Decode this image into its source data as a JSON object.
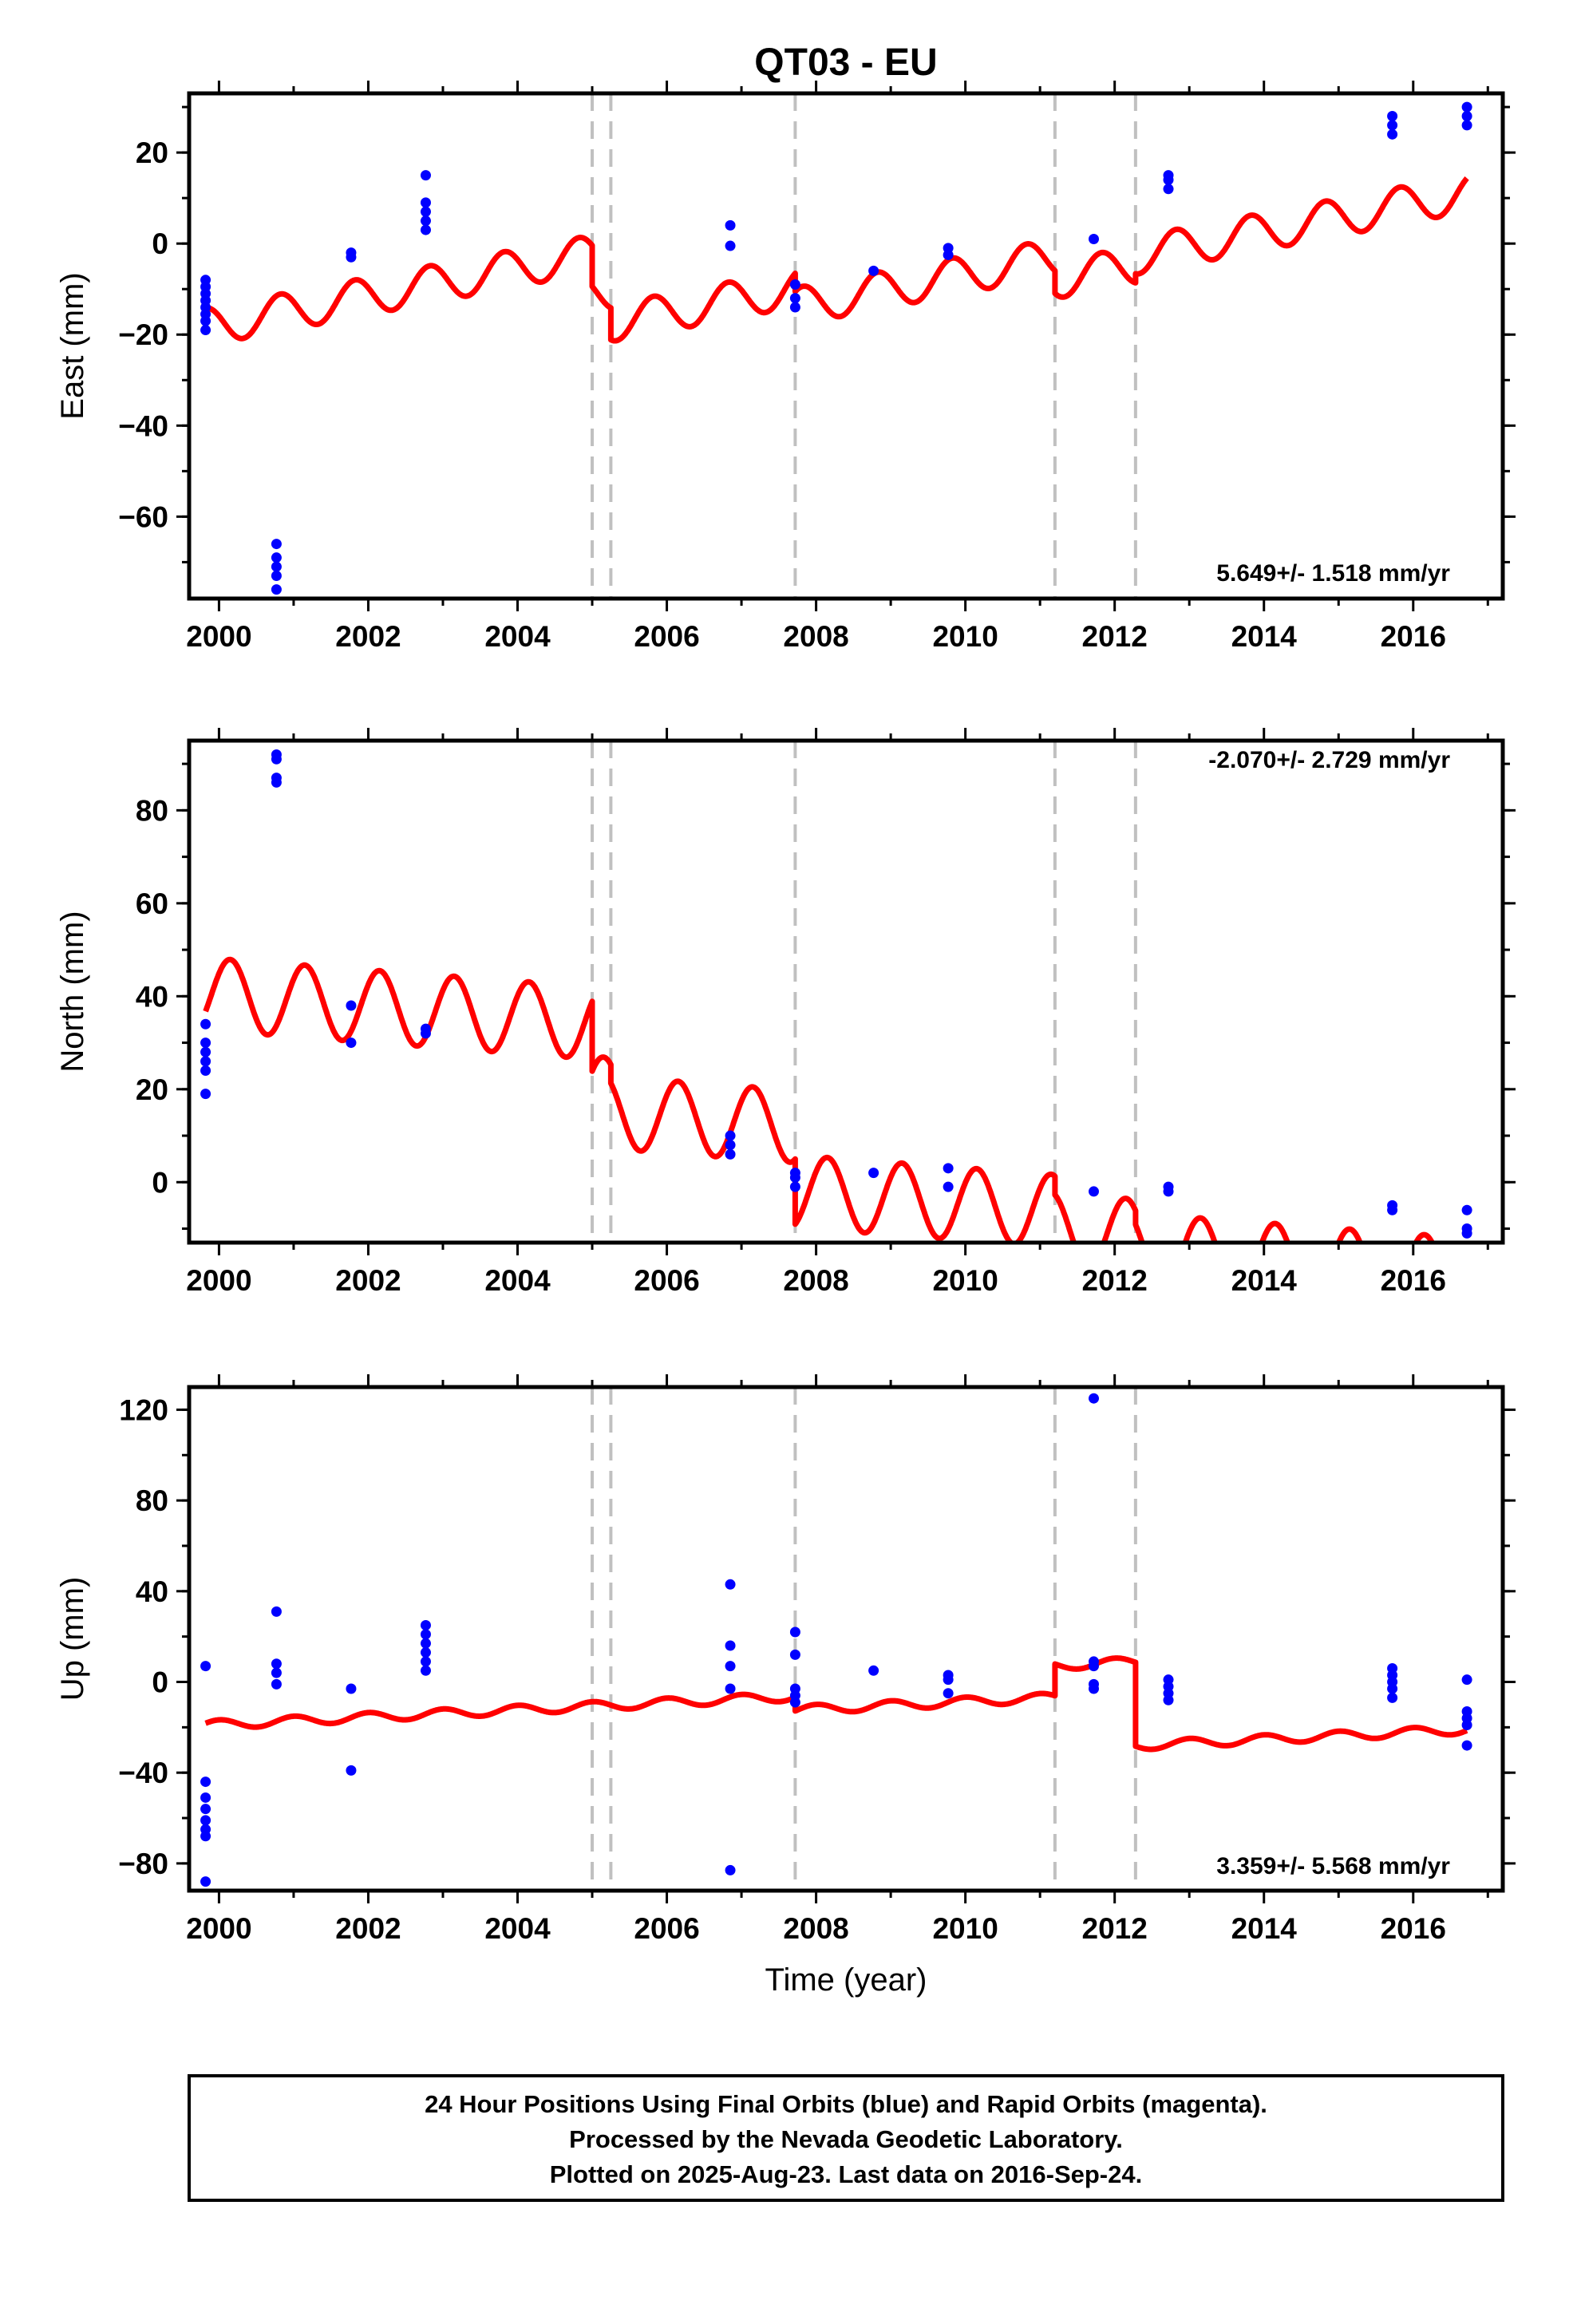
{
  "title": "QT03 - EU",
  "colors": {
    "model": "#ff0000",
    "points": "#0000ff",
    "breaks": "#c0c0c0"
  },
  "footer": {
    "line1": "24 Hour Positions Using Final Orbits (blue) and Rapid Orbits (magenta).",
    "line2": "Processed by the Nevada Geodetic Laboratory.",
    "line3": "Plotted on 2025-Aug-23. Last data on 2016-Sep-24."
  },
  "chart_data": [
    {
      "type": "scatter",
      "name": "east",
      "ylabel": "East (mm)",
      "xlabel": "",
      "rate_label": "5.649+/- 1.518 mm/yr",
      "xlim": [
        1999.6,
        2017.2
      ],
      "ylim": [
        -78,
        33
      ],
      "xticks": [
        2000,
        2002,
        2004,
        2006,
        2008,
        2010,
        2012,
        2014,
        2016
      ],
      "yticks": [
        -60,
        -40,
        -20,
        0,
        20
      ],
      "breaks": [
        2005.0,
        2005.25,
        2007.72,
        2011.2,
        2012.28
      ],
      "points": [
        [
          1999.82,
          -8
        ],
        [
          1999.82,
          -9.5
        ],
        [
          1999.82,
          -11
        ],
        [
          1999.82,
          -12.5
        ],
        [
          1999.82,
          -14
        ],
        [
          1999.82,
          -15.5
        ],
        [
          1999.82,
          -17
        ],
        [
          1999.82,
          -19
        ],
        [
          2000.77,
          -66
        ],
        [
          2000.77,
          -69
        ],
        [
          2000.77,
          -71
        ],
        [
          2000.77,
          -73
        ],
        [
          2000.77,
          -76
        ],
        [
          2001.77,
          -2
        ],
        [
          2001.77,
          -3
        ],
        [
          2002.77,
          3
        ],
        [
          2002.77,
          5
        ],
        [
          2002.77,
          7
        ],
        [
          2002.77,
          9
        ],
        [
          2002.77,
          15
        ],
        [
          2006.85,
          -0.5
        ],
        [
          2006.85,
          4
        ],
        [
          2007.72,
          -9
        ],
        [
          2007.72,
          -12
        ],
        [
          2007.72,
          -14
        ],
        [
          2008.77,
          -6
        ],
        [
          2009.77,
          -1
        ],
        [
          2009.77,
          -2.5
        ],
        [
          2011.72,
          1
        ],
        [
          2012.72,
          12
        ],
        [
          2012.72,
          14
        ],
        [
          2012.72,
          15
        ],
        [
          2015.72,
          24
        ],
        [
          2015.72,
          26
        ],
        [
          2015.72,
          28
        ],
        [
          2016.72,
          26
        ],
        [
          2016.72,
          28
        ],
        [
          2016.72,
          30
        ]
      ],
      "model": {
        "start": 1999.82,
        "end": 2016.72,
        "base": -18.3,
        "rate": 3.1,
        "amp": 4.1,
        "phase": 1.55,
        "segments": [
          {
            "from": 1999.82,
            "to": 2005.0,
            "offset": 0
          },
          {
            "from": 2005.0,
            "to": 2005.25,
            "offset": -9
          },
          {
            "from": 2005.25,
            "to": 2007.72,
            "offset": -16
          },
          {
            "from": 2007.72,
            "to": 2011.2,
            "offset": -20
          },
          {
            "from": 2011.2,
            "to": 2012.28,
            "offset": -25
          },
          {
            "from": 2012.28,
            "to": 2016.72,
            "offset": -23
          }
        ]
      }
    },
    {
      "type": "scatter",
      "name": "north",
      "ylabel": "North (mm)",
      "xlabel": "",
      "rate_label": "-2.070+/- 2.729 mm/yr",
      "xlim": [
        1999.6,
        2017.2
      ],
      "ylim": [
        -13,
        95
      ],
      "xticks": [
        2000,
        2002,
        2004,
        2006,
        2008,
        2010,
        2012,
        2014,
        2016
      ],
      "yticks": [
        0,
        20,
        40,
        60,
        80
      ],
      "breaks": [
        2005.0,
        2005.25,
        2007.72,
        2011.2,
        2012.28
      ],
      "points": [
        [
          1999.82,
          19
        ],
        [
          1999.82,
          24
        ],
        [
          1999.82,
          26
        ],
        [
          1999.82,
          28
        ],
        [
          1999.82,
          30
        ],
        [
          1999.82,
          34
        ],
        [
          2000.77,
          86
        ],
        [
          2000.77,
          87
        ],
        [
          2000.77,
          91
        ],
        [
          2000.77,
          92
        ],
        [
          2001.77,
          30
        ],
        [
          2001.77,
          38
        ],
        [
          2002.77,
          32
        ],
        [
          2002.77,
          33
        ],
        [
          2006.85,
          6
        ],
        [
          2006.85,
          8
        ],
        [
          2006.85,
          10
        ],
        [
          2007.72,
          -1
        ],
        [
          2007.72,
          1
        ],
        [
          2007.72,
          2
        ],
        [
          2008.77,
          2
        ],
        [
          2009.77,
          3
        ],
        [
          2009.77,
          -1
        ],
        [
          2011.72,
          -2
        ],
        [
          2012.72,
          -1
        ],
        [
          2012.72,
          -2
        ],
        [
          2015.72,
          -5
        ],
        [
          2015.72,
          -6
        ],
        [
          2016.72,
          -6
        ],
        [
          2016.72,
          -10
        ],
        [
          2016.72,
          -11
        ]
      ],
      "model": {
        "start": 1999.82,
        "end": 2016.72,
        "base": 40.5,
        "rate": -1.2,
        "amp": 7.8,
        "phase": -0.5,
        "segments": [
          {
            "from": 1999.82,
            "to": 2005.0,
            "offset": 0
          },
          {
            "from": 2005.0,
            "to": 2005.25,
            "offset": -15
          },
          {
            "from": 2005.25,
            "to": 2007.72,
            "offset": -19
          },
          {
            "from": 2007.72,
            "to": 2011.2,
            "offset": -33
          },
          {
            "from": 2011.2,
            "to": 2012.28,
            "offset": -37
          },
          {
            "from": 2012.28,
            "to": 2016.72,
            "offset": -40
          }
        ]
      }
    },
    {
      "type": "scatter",
      "name": "up",
      "ylabel": "Up (mm)",
      "xlabel": "Time (year)",
      "rate_label": "3.359+/- 5.568 mm/yr",
      "xlim": [
        1999.6,
        2017.2
      ],
      "ylim": [
        -92,
        130
      ],
      "xticks": [
        2000,
        2002,
        2004,
        2006,
        2008,
        2010,
        2012,
        2014,
        2016
      ],
      "yticks": [
        -80,
        -40,
        0,
        40,
        80,
        120
      ],
      "breaks": [
        2005.0,
        2005.25,
        2007.72,
        2011.2,
        2012.28
      ],
      "points": [
        [
          1999.82,
          7
        ],
        [
          1999.82,
          -44
        ],
        [
          1999.82,
          -51
        ],
        [
          1999.82,
          -56
        ],
        [
          1999.82,
          -61
        ],
        [
          1999.82,
          -65
        ],
        [
          1999.82,
          -68
        ],
        [
          1999.82,
          -88
        ],
        [
          2000.77,
          31
        ],
        [
          2000.77,
          8
        ],
        [
          2000.77,
          4
        ],
        [
          2000.77,
          -1
        ],
        [
          2001.77,
          -3
        ],
        [
          2001.77,
          -39
        ],
        [
          2002.77,
          25
        ],
        [
          2002.77,
          21
        ],
        [
          2002.77,
          17
        ],
        [
          2002.77,
          13
        ],
        [
          2002.77,
          9
        ],
        [
          2002.77,
          5
        ],
        [
          2006.85,
          43
        ],
        [
          2006.85,
          16
        ],
        [
          2006.85,
          7
        ],
        [
          2006.85,
          -3
        ],
        [
          2006.85,
          -83
        ],
        [
          2007.72,
          22
        ],
        [
          2007.72,
          12
        ],
        [
          2007.72,
          -3
        ],
        [
          2007.72,
          -6
        ],
        [
          2007.72,
          -9
        ],
        [
          2008.77,
          5
        ],
        [
          2009.77,
          3
        ],
        [
          2009.77,
          1
        ],
        [
          2009.77,
          -5
        ],
        [
          2011.72,
          125
        ],
        [
          2011.72,
          9
        ],
        [
          2011.72,
          7
        ],
        [
          2011.72,
          -1
        ],
        [
          2011.72,
          -3
        ],
        [
          2012.72,
          1
        ],
        [
          2012.72,
          -2
        ],
        [
          2012.72,
          -5
        ],
        [
          2012.72,
          -8
        ],
        [
          2015.72,
          6
        ],
        [
          2015.72,
          3
        ],
        [
          2015.72,
          0
        ],
        [
          2015.72,
          -3
        ],
        [
          2015.72,
          -7
        ],
        [
          2016.72,
          1
        ],
        [
          2016.72,
          -13
        ],
        [
          2016.72,
          -16
        ],
        [
          2016.72,
          -19
        ],
        [
          2016.72,
          -28
        ]
      ],
      "model": {
        "start": 1999.82,
        "end": 2016.72,
        "base": -19,
        "rate": 1.6,
        "amp": 2.0,
        "phase": 0.4,
        "segments": [
          {
            "from": 1999.82,
            "to": 2007.72,
            "offset": 0
          },
          {
            "from": 2007.72,
            "to": 2011.2,
            "offset": -6
          },
          {
            "from": 2011.2,
            "to": 2012.28,
            "offset": 8
          },
          {
            "from": 2012.28,
            "to": 2016.72,
            "offset": -29
          }
        ]
      }
    }
  ]
}
